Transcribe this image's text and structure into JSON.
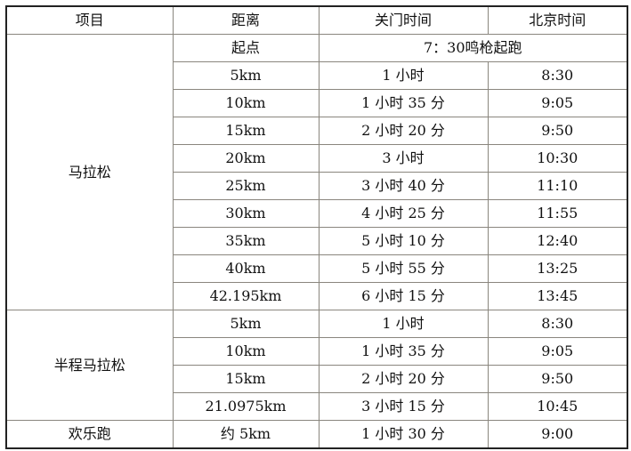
{
  "header": [
    "项目",
    "距离",
    "关门时间",
    "北京时间"
  ],
  "start_row": {
    "distance": "起点",
    "note": "7：30鸣枪起跑"
  },
  "groups": [
    {
      "name": "马拉松",
      "rows": [
        [
          "5km",
          "1 小时",
          "8:30"
        ],
        [
          "10km",
          "1 小时 35 分",
          "9:05"
        ],
        [
          "15km",
          "2 小时 20 分",
          "9:50"
        ],
        [
          "20km",
          "3 小时",
          "10:30"
        ],
        [
          "25km",
          "3 小时 40 分",
          "11:10"
        ],
        [
          "30km",
          "4 小时 25 分",
          "11:55"
        ],
        [
          "35km",
          "5 小时 10 分",
          "12:40"
        ],
        [
          "40km",
          "5 小时 55 分",
          "13:25"
        ],
        [
          "42.195km",
          "6 小时 15 分",
          "13:45"
        ]
      ]
    },
    {
      "name": "半程马拉松",
      "rows": [
        [
          "5km",
          "1 小时",
          "8:30"
        ],
        [
          "10km",
          "1 小时 35 分",
          "9:05"
        ],
        [
          "15km",
          "2 小时 20 分",
          "9:50"
        ],
        [
          "21.0975km",
          "3 小时 15 分",
          "10:45"
        ]
      ]
    },
    {
      "name": "欢乐跑",
      "rows": [
        [
          "约 5km",
          "1 小时 30 分",
          "9:00"
        ]
      ]
    }
  ]
}
